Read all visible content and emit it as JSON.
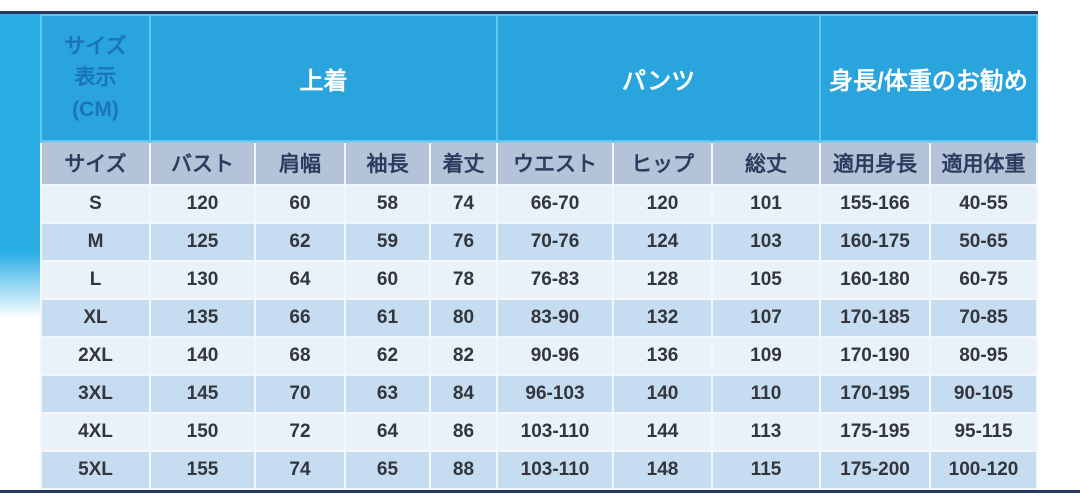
{
  "colors": {
    "backdrop_cyan": "#2bade5",
    "header_cell_cyan": "#29a4dd",
    "header_divider_cyan": "#5fc6ef",
    "corner_text_blue": "#1b74ba",
    "group_text": "#ffffff",
    "subheader_bg": "#b4c3d7",
    "subheader_text": "#2e3b5e",
    "row_light": "#e9f1f9",
    "row_shaded": "#c6dcf0",
    "data_text": "#33363d",
    "rule_navy": "#27395e",
    "page_bg": "#ffffff"
  },
  "chart_data": {
    "type": "table",
    "title": "サイズ表示 (CM)",
    "corner_lines": [
      "サイズ",
      "表示",
      "(CM)"
    ],
    "groups": [
      {
        "label": "上着",
        "span": 4
      },
      {
        "label": "パンツ",
        "span": 3
      },
      {
        "label": "身長/体重のお勧め",
        "span": 2
      }
    ],
    "columns": [
      "サイズ",
      "バスト",
      "肩幅",
      "袖長",
      "着丈",
      "ウエスト",
      "ヒップ",
      "総丈",
      "適用身長",
      "適用体重"
    ],
    "rows": [
      [
        "S",
        "120",
        "60",
        "58",
        "74",
        "66-70",
        "120",
        "101",
        "155-166",
        "40-55"
      ],
      [
        "M",
        "125",
        "62",
        "59",
        "76",
        "70-76",
        "124",
        "103",
        "160-175",
        "50-65"
      ],
      [
        "L",
        "130",
        "64",
        "60",
        "78",
        "76-83",
        "128",
        "105",
        "160-180",
        "60-75"
      ],
      [
        "XL",
        "135",
        "66",
        "61",
        "80",
        "83-90",
        "132",
        "107",
        "170-185",
        "70-85"
      ],
      [
        "2XL",
        "140",
        "68",
        "62",
        "82",
        "90-96",
        "136",
        "109",
        "170-190",
        "80-95"
      ],
      [
        "3XL",
        "145",
        "70",
        "63",
        "84",
        "96-103",
        "140",
        "110",
        "170-195",
        "90-105"
      ],
      [
        "4XL",
        "150",
        "72",
        "64",
        "86",
        "103-110",
        "144",
        "113",
        "175-195",
        "95-115"
      ],
      [
        "5XL",
        "155",
        "74",
        "65",
        "88",
        "103-110",
        "148",
        "115",
        "175-200",
        "100-120"
      ]
    ]
  }
}
